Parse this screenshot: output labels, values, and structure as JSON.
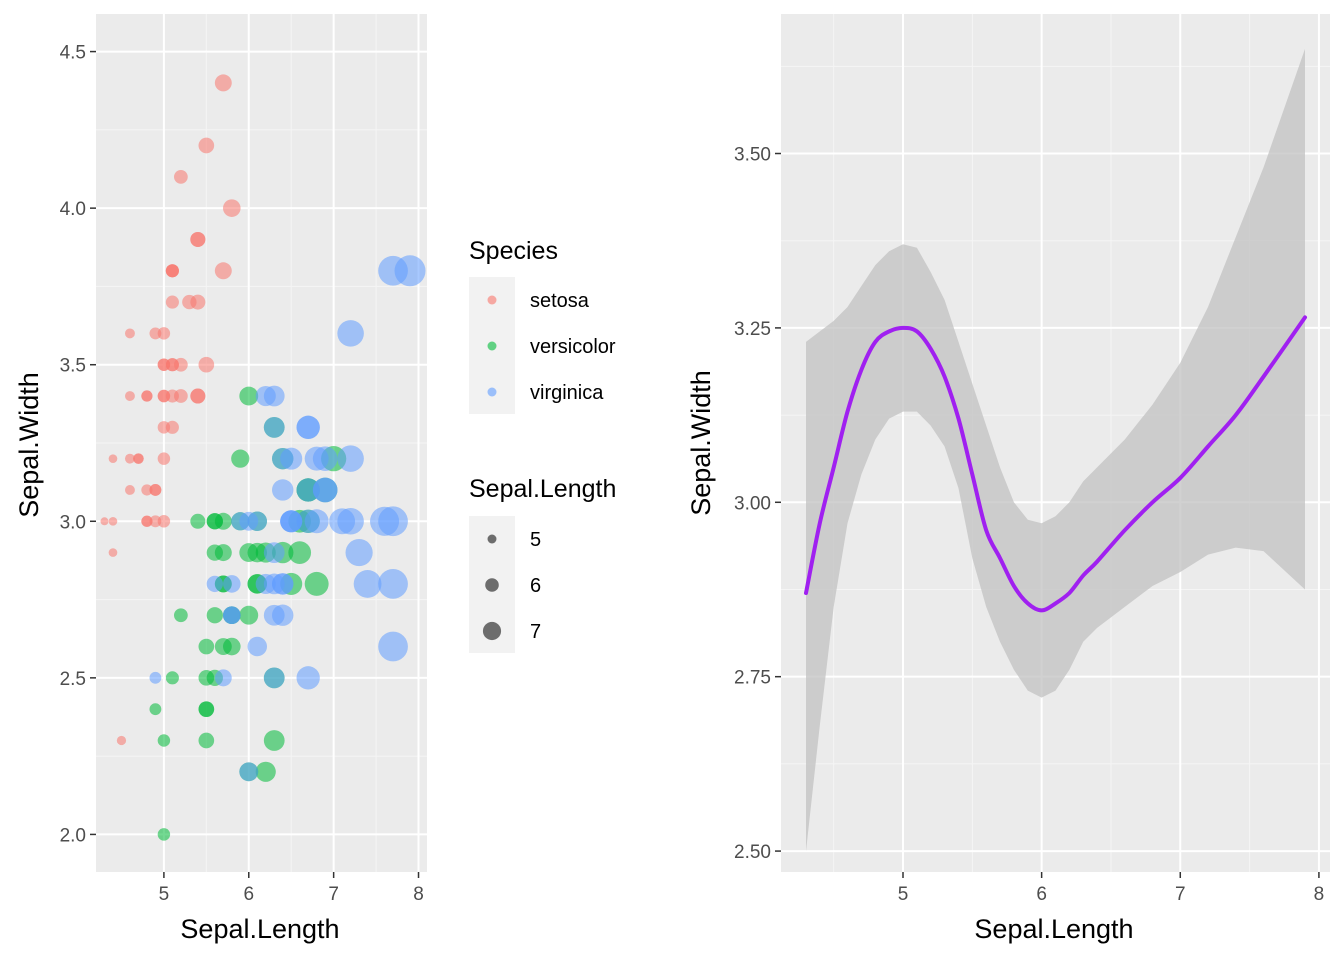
{
  "chart_data": [
    {
      "type": "scatter",
      "xlabel": "Sepal.Length",
      "ylabel": "Sepal.Width",
      "xlim": [
        4.2,
        8.1
      ],
      "ylim": [
        1.88,
        4.62
      ],
      "x_ticks": [
        5,
        6,
        7,
        8
      ],
      "y_ticks": [
        2.0,
        2.5,
        3.0,
        3.5,
        4.0,
        4.5
      ],
      "x_tick_labels": [
        "5",
        "6",
        "7",
        "8"
      ],
      "y_tick_labels": [
        "2.0",
        "2.5",
        "3.0",
        "3.5",
        "4.0",
        "4.5"
      ],
      "grid": true,
      "size_mapped_to": "Sepal.Length",
      "point_alpha": 0.55,
      "series": [
        {
          "name": "setosa",
          "color": "#F8766D",
          "points": [
            [
              5.1,
              3.5
            ],
            [
              4.9,
              3.0
            ],
            [
              4.7,
              3.2
            ],
            [
              4.6,
              3.1
            ],
            [
              5.0,
              3.6
            ],
            [
              5.4,
              3.9
            ],
            [
              4.6,
              3.4
            ],
            [
              5.0,
              3.4
            ],
            [
              4.4,
              2.9
            ],
            [
              4.9,
              3.1
            ],
            [
              5.4,
              3.7
            ],
            [
              4.8,
              3.4
            ],
            [
              4.8,
              3.0
            ],
            [
              4.3,
              3.0
            ],
            [
              5.8,
              4.0
            ],
            [
              5.7,
              4.4
            ],
            [
              5.4,
              3.9
            ],
            [
              5.1,
              3.5
            ],
            [
              5.7,
              3.8
            ],
            [
              5.1,
              3.8
            ],
            [
              5.4,
              3.4
            ],
            [
              5.1,
              3.7
            ],
            [
              4.6,
              3.6
            ],
            [
              5.1,
              3.3
            ],
            [
              4.8,
              3.4
            ],
            [
              5.0,
              3.0
            ],
            [
              5.0,
              3.4
            ],
            [
              5.2,
              3.5
            ],
            [
              5.2,
              3.4
            ],
            [
              4.7,
              3.2
            ],
            [
              4.8,
              3.1
            ],
            [
              5.4,
              3.4
            ],
            [
              5.2,
              4.1
            ],
            [
              5.5,
              4.2
            ],
            [
              4.9,
              3.1
            ],
            [
              5.0,
              3.2
            ],
            [
              5.5,
              3.5
            ],
            [
              4.9,
              3.6
            ],
            [
              4.4,
              3.0
            ],
            [
              5.1,
              3.4
            ],
            [
              5.0,
              3.5
            ],
            [
              4.5,
              2.3
            ],
            [
              4.4,
              3.2
            ],
            [
              5.0,
              3.5
            ],
            [
              5.1,
              3.8
            ],
            [
              4.8,
              3.0
            ],
            [
              5.1,
              3.8
            ],
            [
              4.6,
              3.2
            ],
            [
              5.3,
              3.7
            ],
            [
              5.0,
              3.3
            ]
          ]
        },
        {
          "name": "versicolor",
          "color": "#00BA38",
          "points": [
            [
              7.0,
              3.2
            ],
            [
              6.4,
              3.2
            ],
            [
              6.9,
              3.1
            ],
            [
              5.5,
              2.3
            ],
            [
              6.5,
              2.8
            ],
            [
              5.7,
              2.8
            ],
            [
              6.3,
              3.3
            ],
            [
              4.9,
              2.4
            ],
            [
              6.6,
              2.9
            ],
            [
              5.2,
              2.7
            ],
            [
              5.0,
              2.0
            ],
            [
              5.9,
              3.0
            ],
            [
              6.0,
              2.2
            ],
            [
              6.1,
              2.9
            ],
            [
              5.6,
              2.9
            ],
            [
              6.7,
              3.1
            ],
            [
              5.6,
              3.0
            ],
            [
              5.8,
              2.7
            ],
            [
              6.2,
              2.2
            ],
            [
              5.6,
              2.5
            ],
            [
              5.9,
              3.2
            ],
            [
              6.1,
              2.8
            ],
            [
              6.3,
              2.5
            ],
            [
              6.1,
              2.8
            ],
            [
              6.4,
              2.9
            ],
            [
              6.6,
              3.0
            ],
            [
              6.8,
              2.8
            ],
            [
              6.7,
              3.0
            ],
            [
              6.0,
              2.9
            ],
            [
              5.7,
              2.6
            ],
            [
              5.5,
              2.4
            ],
            [
              5.5,
              2.4
            ],
            [
              5.8,
              2.7
            ],
            [
              6.0,
              2.7
            ],
            [
              5.4,
              3.0
            ],
            [
              6.0,
              3.4
            ],
            [
              6.7,
              3.1
            ],
            [
              6.3,
              2.3
            ],
            [
              5.6,
              3.0
            ],
            [
              5.5,
              2.5
            ],
            [
              5.5,
              2.6
            ],
            [
              6.1,
              3.0
            ],
            [
              5.8,
              2.6
            ],
            [
              5.0,
              2.3
            ],
            [
              5.6,
              2.7
            ],
            [
              5.7,
              3.0
            ],
            [
              5.7,
              2.9
            ],
            [
              6.2,
              2.9
            ],
            [
              5.1,
              2.5
            ],
            [
              5.7,
              2.8
            ]
          ]
        },
        {
          "name": "virginica",
          "color": "#619CFF",
          "points": [
            [
              6.3,
              3.3
            ],
            [
              5.8,
              2.7
            ],
            [
              7.1,
              3.0
            ],
            [
              6.3,
              2.9
            ],
            [
              6.5,
              3.0
            ],
            [
              7.6,
              3.0
            ],
            [
              4.9,
              2.5
            ],
            [
              7.3,
              2.9
            ],
            [
              6.7,
              2.5
            ],
            [
              7.2,
              3.6
            ],
            [
              6.5,
              3.2
            ],
            [
              6.4,
              2.7
            ],
            [
              6.8,
              3.0
            ],
            [
              5.7,
              2.5
            ],
            [
              5.8,
              2.8
            ],
            [
              6.4,
              3.2
            ],
            [
              6.5,
              3.0
            ],
            [
              7.7,
              3.8
            ],
            [
              7.7,
              2.6
            ],
            [
              6.0,
              2.2
            ],
            [
              6.9,
              3.2
            ],
            [
              5.6,
              2.8
            ],
            [
              7.7,
              2.8
            ],
            [
              6.3,
              2.7
            ],
            [
              6.7,
              3.3
            ],
            [
              7.2,
              3.2
            ],
            [
              6.2,
              2.8
            ],
            [
              6.1,
              3.0
            ],
            [
              6.4,
              2.8
            ],
            [
              7.2,
              3.0
            ],
            [
              7.4,
              2.8
            ],
            [
              7.9,
              3.8
            ],
            [
              6.4,
              2.8
            ],
            [
              6.3,
              2.8
            ],
            [
              6.1,
              2.6
            ],
            [
              7.7,
              3.0
            ],
            [
              6.3,
              3.4
            ],
            [
              6.4,
              3.1
            ],
            [
              6.0,
              3.0
            ],
            [
              6.9,
              3.1
            ],
            [
              6.7,
              3.1
            ],
            [
              6.9,
              3.1
            ],
            [
              5.8,
              2.7
            ],
            [
              6.8,
              3.2
            ],
            [
              6.7,
              3.3
            ],
            [
              6.7,
              3.0
            ],
            [
              6.3,
              2.5
            ],
            [
              6.5,
              3.0
            ],
            [
              6.2,
              3.4
            ],
            [
              5.9,
              3.0
            ]
          ]
        }
      ],
      "legend_color": {
        "title": "Species",
        "items": [
          "setosa",
          "versicolor",
          "virginica"
        ]
      },
      "legend_size": {
        "title": "Sepal.Length",
        "items": [
          "5",
          "6",
          "7"
        ],
        "values": [
          5,
          6,
          7
        ]
      }
    },
    {
      "type": "line",
      "xlabel": "Sepal.Length",
      "ylabel": "Sepal.Width",
      "xlim": [
        4.12,
        8.08
      ],
      "ylim": [
        2.47,
        3.7
      ],
      "x_ticks": [
        5,
        6,
        7,
        8
      ],
      "y_ticks": [
        2.5,
        2.75,
        3.0,
        3.25,
        3.5
      ],
      "x_tick_labels": [
        "5",
        "6",
        "7",
        "8"
      ],
      "y_tick_labels": [
        "2.50",
        "2.75",
        "3.00",
        "3.25",
        "3.50"
      ],
      "grid": true,
      "line_color": "#A020F0",
      "ribbon_color": "#BFBFBF",
      "smooth": {
        "x": [
          4.3,
          4.4,
          4.5,
          4.6,
          4.7,
          4.8,
          4.9,
          5.0,
          5.1,
          5.2,
          5.3,
          5.4,
          5.5,
          5.6,
          5.7,
          5.8,
          5.9,
          6.0,
          6.1,
          6.2,
          6.3,
          6.4,
          6.6,
          6.8,
          7.0,
          7.2,
          7.4,
          7.6,
          7.9
        ],
        "y": [
          2.87,
          2.97,
          3.05,
          3.13,
          3.19,
          3.23,
          3.245,
          3.25,
          3.245,
          3.22,
          3.18,
          3.12,
          3.04,
          2.96,
          2.92,
          2.88,
          2.855,
          2.845,
          2.855,
          2.87,
          2.895,
          2.915,
          2.96,
          3.0,
          3.035,
          3.08,
          3.125,
          3.18,
          3.265
        ],
        "lower": [
          2.5,
          2.68,
          2.85,
          2.97,
          3.04,
          3.09,
          3.12,
          3.13,
          3.13,
          3.11,
          3.08,
          3.02,
          2.92,
          2.85,
          2.8,
          2.76,
          2.73,
          2.72,
          2.73,
          2.76,
          2.8,
          2.82,
          2.85,
          2.88,
          2.9,
          2.925,
          2.935,
          2.93,
          2.875
        ],
        "upper": [
          3.23,
          3.245,
          3.26,
          3.28,
          3.31,
          3.34,
          3.36,
          3.37,
          3.365,
          3.33,
          3.29,
          3.23,
          3.17,
          3.11,
          3.05,
          3.0,
          2.975,
          2.97,
          2.98,
          3.0,
          3.03,
          3.05,
          3.09,
          3.14,
          3.2,
          3.28,
          3.38,
          3.48,
          3.65
        ]
      }
    }
  ]
}
